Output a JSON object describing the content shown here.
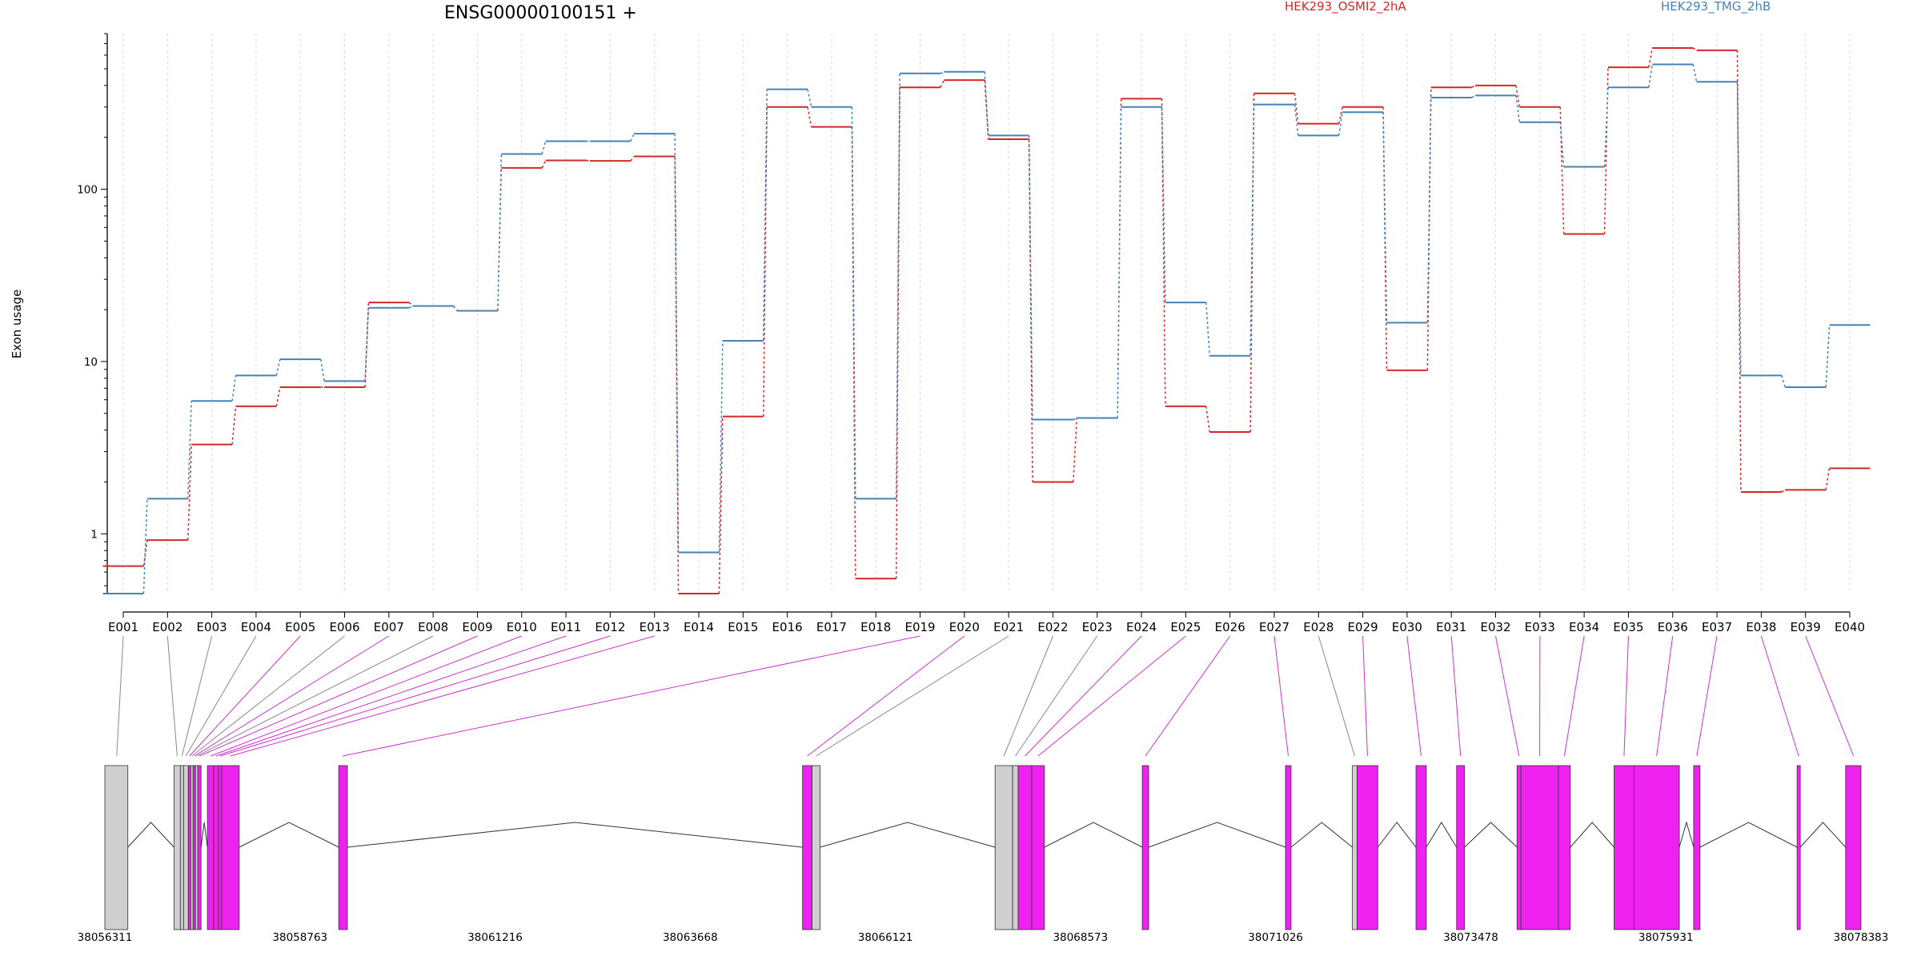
{
  "chart_data": {
    "type": "line",
    "title": "ENSG00000100151 +",
    "ylabel": "Exon usage",
    "xlabel": "",
    "y_scale": "log",
    "ylim": [
      0.45,
      800
    ],
    "y_ticks": [
      1,
      10,
      100
    ],
    "y_tick_labels": [
      "1",
      "10",
      "100"
    ],
    "grid": "vertical dotted lines at each exon",
    "legend_position": "top",
    "categories": [
      "E001",
      "E002",
      "E003",
      "E004",
      "E005",
      "E006",
      "E007",
      "E008",
      "E009",
      "E010",
      "E011",
      "E012",
      "E013",
      "E014",
      "E015",
      "E016",
      "E017",
      "E018",
      "E019",
      "E020",
      "E021",
      "E022",
      "E023",
      "E024",
      "E025",
      "E026",
      "E027",
      "E028",
      "E029",
      "E030",
      "E031",
      "E032",
      "E033",
      "E034",
      "E035",
      "E036",
      "E037",
      "E038",
      "E039",
      "E040"
    ],
    "series": [
      {
        "name": "HEK293_OSMI2_2hA",
        "color": "#d62728",
        "values": [
          0.65,
          0.92,
          3.3,
          5.5,
          7.1,
          7.1,
          22,
          21,
          19.7,
          133,
          147,
          146,
          155,
          0.45,
          4.8,
          300,
          230,
          0.55,
          390,
          430,
          195,
          2.0,
          4.7,
          335,
          5.5,
          3.9,
          360,
          240,
          300,
          8.9,
          390,
          400,
          300,
          55,
          510,
          660,
          640,
          1.75,
          1.8,
          2.4
        ]
      },
      {
        "name": "HEK293_TMG_2hB",
        "color": "#4682b4",
        "values": [
          0.45,
          1.6,
          5.9,
          8.3,
          10.3,
          7.7,
          20.5,
          21,
          19.7,
          160,
          190,
          190,
          210,
          0.78,
          13.2,
          380,
          300,
          1.6,
          470,
          480,
          205,
          4.6,
          4.7,
          300,
          22,
          10.8,
          310,
          205,
          280,
          16.8,
          340,
          350,
          245,
          135,
          390,
          530,
          420,
          8.3,
          7.1,
          16.3
        ]
      }
    ],
    "gene_model": {
      "coordinate_labels": [
        "38056311",
        "38058763",
        "38061216",
        "38063668",
        "38066121",
        "38068573",
        "38071026",
        "38073478",
        "38075931",
        "38078383"
      ],
      "coord_range": [
        38056311,
        38078383
      ],
      "exons": [
        {
          "start": 38056311,
          "end": 38056600,
          "color": "gray"
        },
        {
          "start": 38057180,
          "end": 38057260,
          "color": "gray"
        },
        {
          "start": 38057260,
          "end": 38057300,
          "color": "gray"
        },
        {
          "start": 38057300,
          "end": 38057360,
          "color": "gray"
        },
        {
          "start": 38057360,
          "end": 38057390,
          "color": "magenta"
        },
        {
          "start": 38057390,
          "end": 38057420,
          "color": "gray"
        },
        {
          "start": 38057420,
          "end": 38057450,
          "color": "magenta"
        },
        {
          "start": 38057450,
          "end": 38057480,
          "color": "gray"
        },
        {
          "start": 38057480,
          "end": 38057520,
          "color": "magenta"
        },
        {
          "start": 38057600,
          "end": 38057680,
          "color": "magenta"
        },
        {
          "start": 38057680,
          "end": 38057740,
          "color": "magenta"
        },
        {
          "start": 38057740,
          "end": 38057780,
          "color": "magenta"
        },
        {
          "start": 38057780,
          "end": 38058000,
          "color": "magenta"
        },
        {
          "start": 38059250,
          "end": 38059360,
          "color": "magenta"
        },
        {
          "start": 38065080,
          "end": 38065200,
          "color": "magenta"
        },
        {
          "start": 38065200,
          "end": 38065300,
          "color": "gray"
        },
        {
          "start": 38067500,
          "end": 38067720,
          "color": "gray"
        },
        {
          "start": 38067720,
          "end": 38067790,
          "color": "gray"
        },
        {
          "start": 38067790,
          "end": 38067960,
          "color": "magenta"
        },
        {
          "start": 38067960,
          "end": 38068120,
          "color": "magenta"
        },
        {
          "start": 38069350,
          "end": 38069430,
          "color": "magenta"
        },
        {
          "start": 38071150,
          "end": 38071220,
          "color": "magenta"
        },
        {
          "start": 38071990,
          "end": 38072050,
          "color": "gray"
        },
        {
          "start": 38072050,
          "end": 38072310,
          "color": "magenta"
        },
        {
          "start": 38072790,
          "end": 38072920,
          "color": "magenta"
        },
        {
          "start": 38073300,
          "end": 38073400,
          "color": "magenta"
        },
        {
          "start": 38074060,
          "end": 38074110,
          "color": "magenta"
        },
        {
          "start": 38074110,
          "end": 38074580,
          "color": "magenta"
        },
        {
          "start": 38074580,
          "end": 38074730,
          "color": "magenta"
        },
        {
          "start": 38075280,
          "end": 38075530,
          "color": "magenta"
        },
        {
          "start": 38075530,
          "end": 38076100,
          "color": "magenta"
        },
        {
          "start": 38076280,
          "end": 38076360,
          "color": "magenta"
        },
        {
          "start": 38077580,
          "end": 38077620,
          "color": "magenta"
        },
        {
          "start": 38078190,
          "end": 38078383,
          "color": "magenta"
        }
      ],
      "exon_links": [
        {
          "exon": "E001",
          "pos": 38056460,
          "color": "gray"
        },
        {
          "exon": "E002",
          "pos": 38057220,
          "color": "gray"
        },
        {
          "exon": "E003",
          "pos": 38057280,
          "color": "gray"
        },
        {
          "exon": "E004",
          "pos": 38057330,
          "color": "gray"
        },
        {
          "exon": "E005",
          "pos": 38057375,
          "color": "magenta"
        },
        {
          "exon": "E006",
          "pos": 38057405,
          "color": "gray"
        },
        {
          "exon": "E007",
          "pos": 38057435,
          "color": "magenta"
        },
        {
          "exon": "E008",
          "pos": 38057465,
          "color": "gray"
        },
        {
          "exon": "E009",
          "pos": 38057500,
          "color": "magenta"
        },
        {
          "exon": "E010",
          "pos": 38057640,
          "color": "magenta"
        },
        {
          "exon": "E011",
          "pos": 38057710,
          "color": "magenta"
        },
        {
          "exon": "E012",
          "pos": 38057760,
          "color": "magenta"
        },
        {
          "exon": "E013",
          "pos": 38057890,
          "color": "magenta"
        },
        {
          "exon": "E014",
          "pos": 38059300,
          "color": "magenta"
        },
        {
          "exon": "E015",
          "pos": 38065140,
          "color": "magenta"
        },
        {
          "exon": "E016",
          "pos": 38065250,
          "color": "gray"
        },
        {
          "exon": "E017",
          "pos": 38067610,
          "color": "gray"
        },
        {
          "exon": "E018",
          "pos": 38067755,
          "color": "gray"
        },
        {
          "exon": "E019",
          "pos": 38067875,
          "color": "magenta"
        },
        {
          "exon": "E020",
          "pos": 38068040,
          "color": "magenta"
        },
        {
          "exon": "E021",
          "pos": 38069390,
          "color": "magenta"
        },
        {
          "exon": "E022",
          "pos": 38071185,
          "color": "magenta"
        },
        {
          "exon": "E023",
          "pos": 38072020,
          "color": "gray"
        },
        {
          "exon": "E024",
          "pos": 38072180,
          "color": "magenta"
        },
        {
          "exon": "E025",
          "pos": 38072855,
          "color": "magenta"
        },
        {
          "exon": "E026",
          "pos": 38073350,
          "color": "magenta"
        },
        {
          "exon": "E027",
          "pos": 38074085,
          "color": "magenta"
        },
        {
          "exon": "E028",
          "pos": 38074345,
          "color": "magenta"
        },
        {
          "exon": "E029",
          "pos": 38074655,
          "color": "magenta"
        },
        {
          "exon": "E030",
          "pos": 38075405,
          "color": "magenta"
        },
        {
          "exon": "E031",
          "pos": 38075815,
          "color": "magenta"
        },
        {
          "exon": "E032",
          "pos": 38076320,
          "color": "magenta"
        },
        {
          "exon": "E033",
          "pos": 38077600,
          "color": "magenta"
        },
        {
          "exon": "E034",
          "pos": 38078290,
          "color": "magenta"
        }
      ],
      "link_targets": [
        "E001",
        "E002",
        "E003",
        "E004",
        "E005",
        "E006",
        "E007",
        "E008",
        "E009",
        "E010",
        "E011",
        "E012",
        "E013",
        "E019",
        "E020",
        "E021",
        "E022",
        "E023",
        "E024",
        "E025",
        "E026",
        "E027",
        "E028",
        "E029",
        "E030",
        "E031",
        "E032",
        "E033",
        "E034",
        "E035",
        "E036",
        "E037",
        "E038",
        "E039",
        "E040"
      ]
    }
  }
}
